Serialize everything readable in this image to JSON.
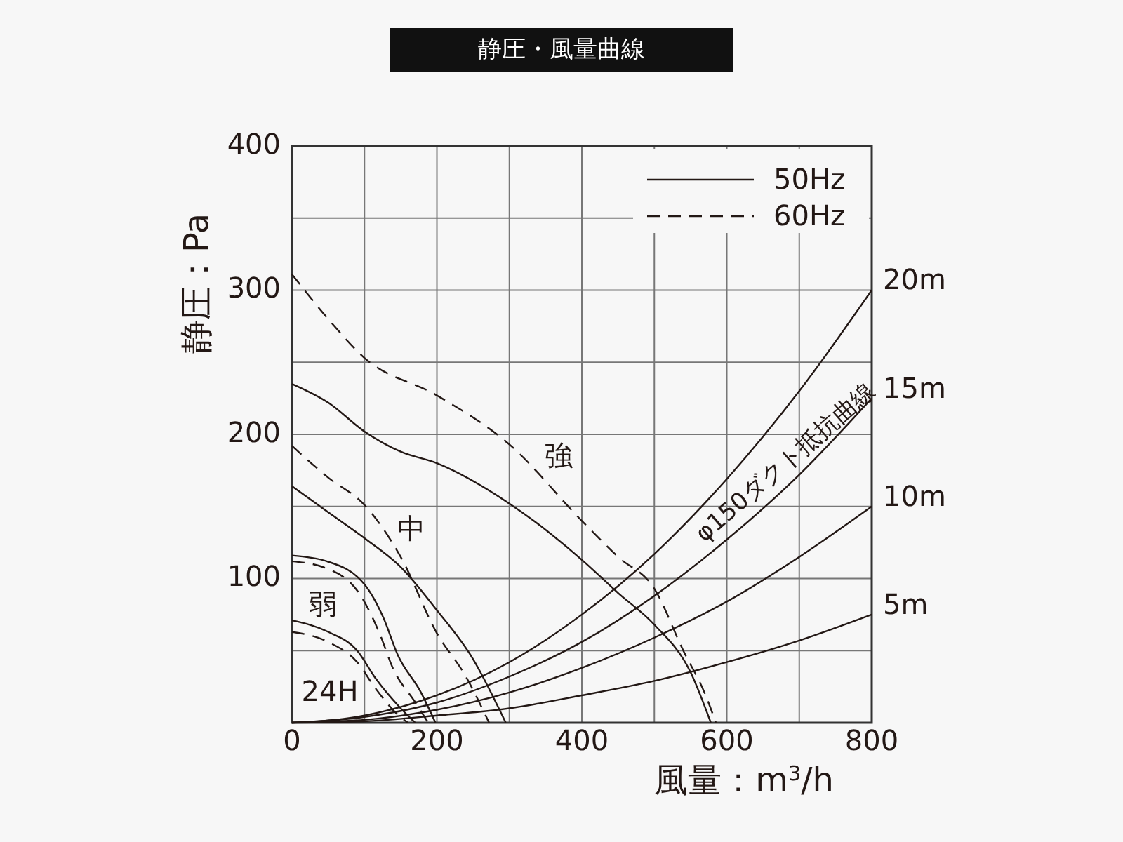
{
  "chart_data": {
    "type": "line",
    "title": "静圧・風量曲線",
    "xlabel": "風量：m$^{3}$/h",
    "ylabel": "静圧：Pa",
    "xlim": [
      0,
      800
    ],
    "ylim": [
      0,
      400
    ],
    "xticks": [
      0,
      {
        "value": 100,
        "label": null
      },
      200,
      {
        "value": 300,
        "label": null
      },
      400,
      {
        "value": 500,
        "label": null
      },
      600,
      {
        "value": 700,
        "label": null
      },
      800
    ],
    "yticks": [
      {
        "value": 0,
        "label": null
      },
      {
        "value": 50,
        "label": null
      },
      100,
      {
        "value": 150,
        "label": null
      },
      200,
      {
        "value": 250,
        "label": null
      },
      300,
      {
        "value": 350,
        "label": null
      },
      400
    ],
    "grid": true,
    "legend": "top right",
    "marker": "none",
    "series": [
      {
        "name": "50Hz",
        "color": "#231815",
        "line_style": "solid",
        "x": [
          0,
          50,
          100,
          150,
          200,
          300,
          400,
          450,
          500,
          550,
          578
        ],
        "values": [
          235,
          222,
          202,
          188,
          180,
          152,
          113,
          90,
          68,
          35,
          0
        ]
      },
      {
        "name": "60Hz",
        "color": "#231815",
        "line_style": "dashed",
        "x": [
          0,
          50,
          100,
          200,
          300,
          400,
          450,
          500,
          540,
          570,
          585
        ],
        "values": [
          311,
          280,
          253,
          227,
          193,
          140,
          115,
          93,
          50,
          20,
          0
        ]
      },
      {
        "color": "#231815",
        "line_style": "solid",
        "x": [
          0,
          50,
          100,
          150,
          200,
          250,
          295
        ],
        "values": [
          164,
          146,
          128,
          108,
          78,
          44,
          0
        ]
      },
      {
        "color": "#231815",
        "line_style": "dashed",
        "x": [
          0,
          50,
          100,
          150,
          200,
          240,
          272
        ],
        "values": [
          192,
          170,
          151,
          115,
          62,
          32,
          0
        ]
      },
      {
        "color": "#231815",
        "line_style": "solid",
        "x": [
          0,
          48,
          100,
          126,
          146,
          178,
          198
        ],
        "values": [
          116,
          112,
          96,
          73,
          47,
          21,
          0
        ]
      },
      {
        "color": "#231815",
        "line_style": "dashed",
        "x": [
          0,
          48,
          95,
          120,
          140,
          169,
          188
        ],
        "values": [
          112,
          107,
          88,
          63,
          37,
          15,
          0
        ]
      },
      {
        "color": "#231815",
        "line_style": "solid",
        "x": [
          0,
          50,
          90,
          115,
          150,
          170
        ],
        "values": [
          71,
          63,
          50,
          31,
          10,
          0
        ]
      },
      {
        "color": "#231815",
        "line_style": "dashed",
        "x": [
          0,
          50,
          90,
          115,
          145,
          160
        ],
        "values": [
          63,
          56,
          42,
          24,
          6,
          0
        ]
      },
      {
        "name": "20m",
        "color": "#231815",
        "line_style": "solid",
        "x": [
          0,
          100,
          200,
          300,
          400,
          500,
          600,
          700,
          800
        ],
        "values": [
          0,
          5,
          19,
          42,
          75,
          117,
          169,
          230,
          300
        ]
      },
      {
        "name": "15m",
        "color": "#231815",
        "line_style": "solid",
        "x": [
          0,
          100,
          200,
          300,
          400,
          500,
          600,
          700,
          800
        ],
        "values": [
          0,
          4,
          14,
          32,
          56,
          88,
          127,
          172,
          225
        ]
      },
      {
        "name": "10m",
        "color": "#231815",
        "line_style": "solid",
        "x": [
          0,
          100,
          200,
          300,
          400,
          500,
          600,
          700,
          800
        ],
        "values": [
          0,
          2,
          9,
          21,
          38,
          59,
          84,
          115,
          150
        ]
      },
      {
        "name": "5m",
        "color": "#231815",
        "line_style": "solid",
        "x": [
          0,
          100,
          200,
          300,
          400,
          500,
          600,
          700,
          800
        ],
        "values": [
          0,
          1,
          5,
          10,
          19,
          29,
          42,
          57,
          75
        ]
      }
    ],
    "annotations": [
      "強",
      "中",
      "弱",
      "24H",
      "φ150ダクト抵抗曲線"
    ]
  }
}
